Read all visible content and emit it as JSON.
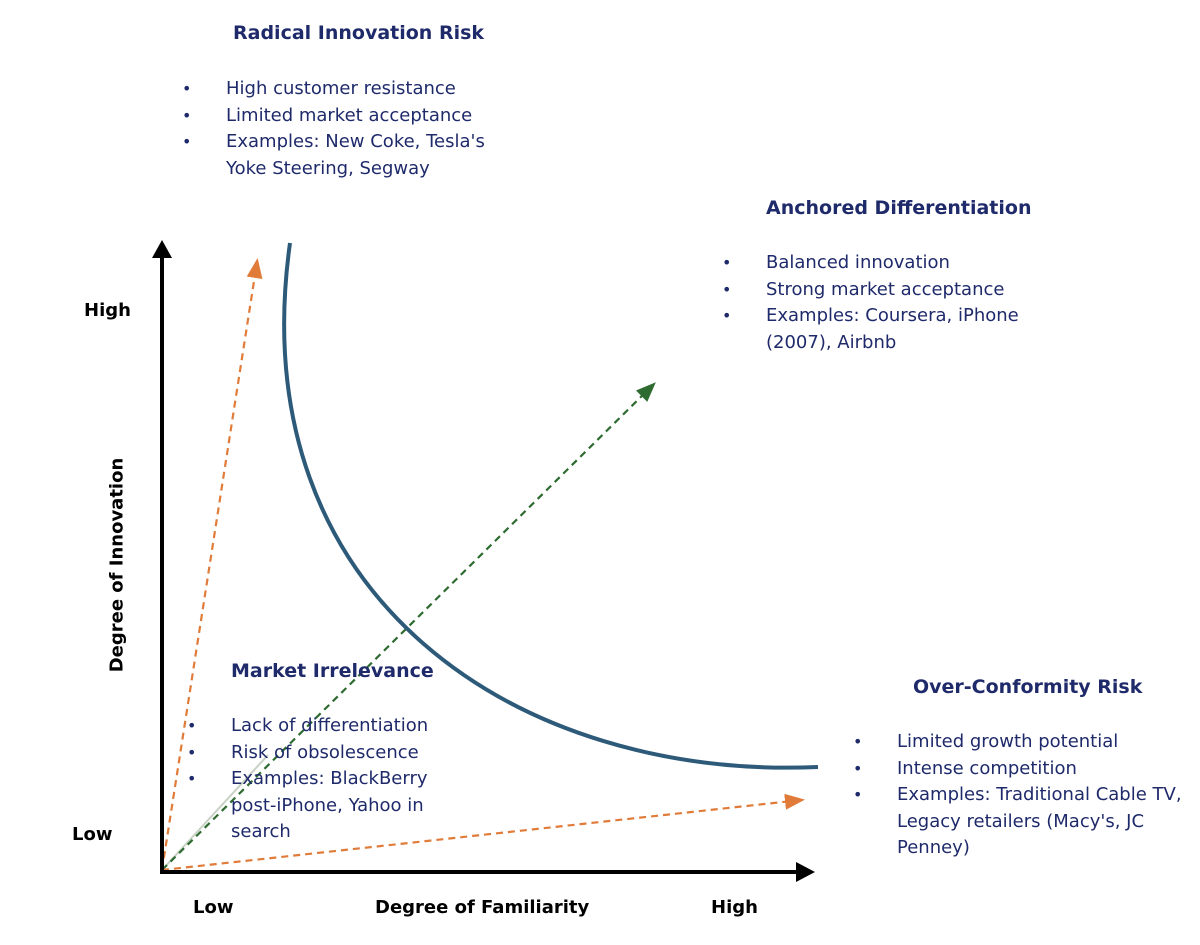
{
  "axes": {
    "x_title": "Degree of Familiarity",
    "y_title": "Degree of Innovation",
    "x_low": "Low",
    "x_high": "High",
    "y_low": "Low",
    "y_high": "High"
  },
  "quadrants": {
    "radical": {
      "title": "Radical Innovation Risk",
      "bullets": [
        "High customer resistance",
        "Limited market acceptance",
        "Examples: New Coke, Tesla's Yoke Steering, Segway"
      ]
    },
    "anchored": {
      "title": "Anchored Differentiation",
      "bullets": [
        "Balanced innovation",
        "Strong market acceptance",
        "Examples: Coursera, iPhone (2007), Airbnb"
      ]
    },
    "irrelevance": {
      "title": "Market Irrelevance",
      "bullets": [
        "Lack of differentiation",
        "Risk of obsolescence",
        "Examples: BlackBerry post-iPhone, Yahoo in search"
      ]
    },
    "overconformity": {
      "title": "Over-Conformity Risk",
      "bullets": [
        "Limited growth potential",
        "Intense competition",
        "Examples: Traditional Cable TV, Legacy retailers (Macy's, JC Penney)"
      ]
    }
  },
  "colors": {
    "text": "#1f2a6b",
    "curve": "#2e5a7a",
    "risk_arrow": "#e07b39",
    "balanced_arrow": "#2e6b30",
    "diagonal_guide": "#c7d2c4",
    "axis": "#000000"
  }
}
